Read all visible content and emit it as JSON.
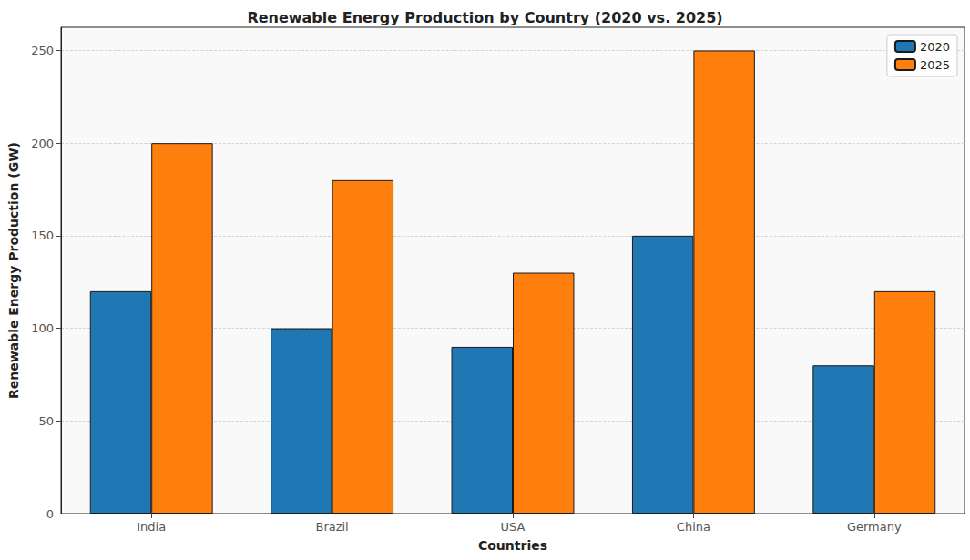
{
  "chart_data": {
    "type": "bar",
    "title": "Renewable Energy Production by Country (2020 vs. 2025)",
    "x_label": "Countries",
    "y_label": "Renewable Energy Production (GW)",
    "categories": [
      "India",
      "Brazil",
      "USA",
      "China",
      "Germany"
    ],
    "series": [
      {
        "name": "2020",
        "color": "#1f77b4",
        "values": [
          120,
          100,
          90,
          150,
          80
        ]
      },
      {
        "name": "2025",
        "color": "#ff7f0e",
        "values": [
          200,
          180,
          130,
          250,
          120
        ]
      }
    ],
    "ylim": [
      0,
      262.5
    ],
    "yticks": [
      0,
      50,
      100,
      150,
      200,
      250
    ],
    "grid": true,
    "legend": "upper right"
  }
}
